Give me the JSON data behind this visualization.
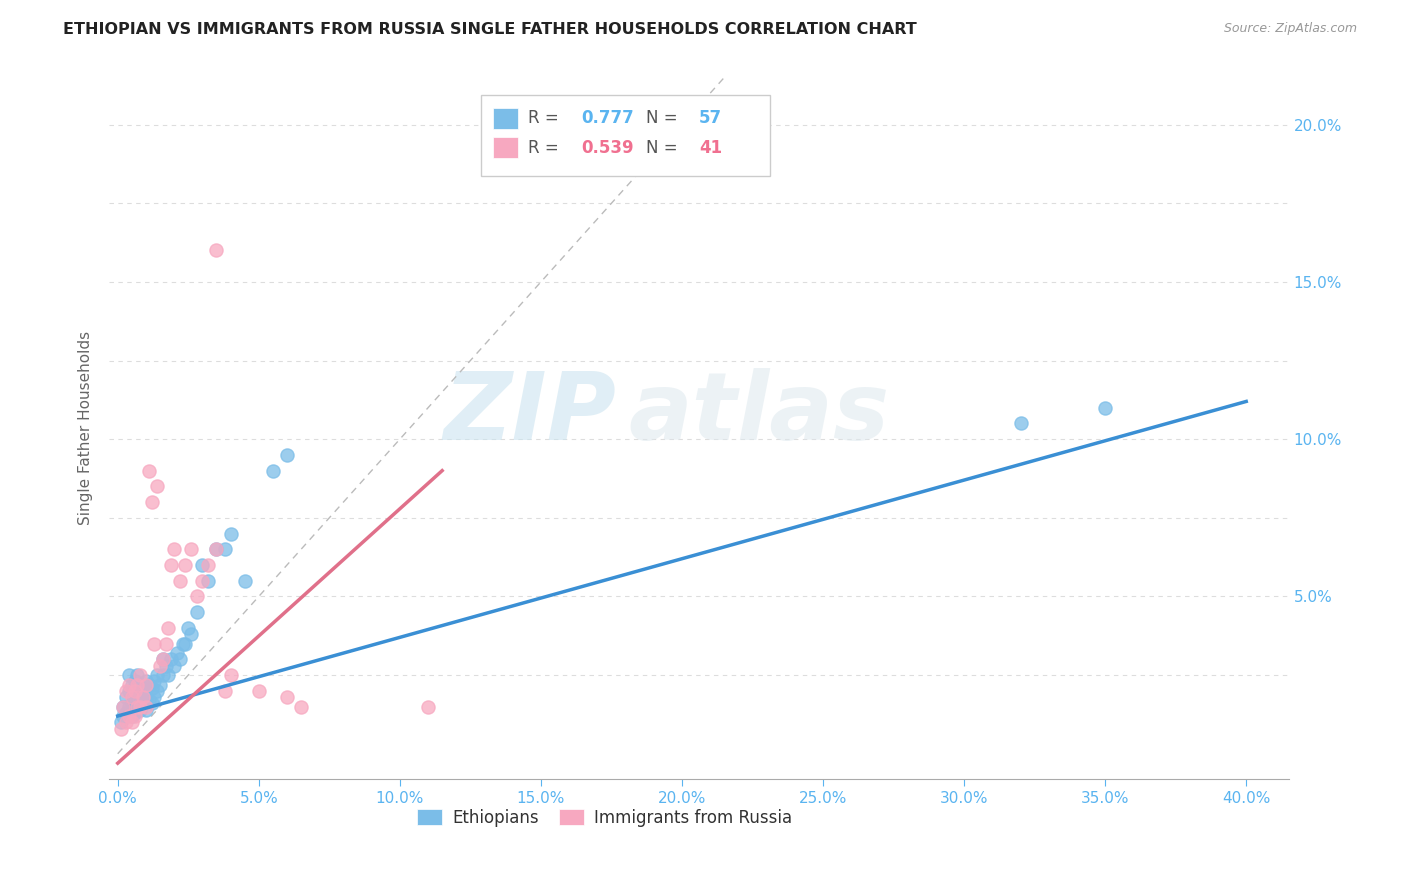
{
  "title": "ETHIOPIAN VS IMMIGRANTS FROM RUSSIA SINGLE FATHER HOUSEHOLDS CORRELATION CHART",
  "source": "Source: ZipAtlas.com",
  "xlabel_ticks": [
    0.0,
    0.05,
    0.1,
    0.15,
    0.2,
    0.25,
    0.3,
    0.35,
    0.4
  ],
  "ylabel_ticks": [
    0.0,
    0.025,
    0.05,
    0.075,
    0.1,
    0.125,
    0.15,
    0.175,
    0.2
  ],
  "xlim": [
    -0.003,
    0.415
  ],
  "ylim": [
    -0.008,
    0.215
  ],
  "ylabel": "Single Father Households",
  "blue_R": 0.777,
  "blue_N": 57,
  "pink_R": 0.539,
  "pink_N": 41,
  "blue_color": "#7bbde8",
  "pink_color": "#f7a8c0",
  "blue_label": "Ethiopians",
  "pink_label": "Immigrants from Russia",
  "tick_label_color": "#5ab4f0",
  "axis_color": "#aaaaaa",
  "grid_color": "#dddddd",
  "watermark_zip": "ZIP",
  "watermark_atlas": "atlas",
  "blue_scatter_x": [
    0.001,
    0.002,
    0.002,
    0.003,
    0.003,
    0.004,
    0.004,
    0.004,
    0.005,
    0.005,
    0.005,
    0.006,
    0.006,
    0.006,
    0.007,
    0.007,
    0.007,
    0.008,
    0.008,
    0.008,
    0.009,
    0.009,
    0.01,
    0.01,
    0.01,
    0.011,
    0.011,
    0.012,
    0.012,
    0.013,
    0.013,
    0.014,
    0.014,
    0.015,
    0.016,
    0.016,
    0.017,
    0.018,
    0.019,
    0.02,
    0.021,
    0.022,
    0.023,
    0.024,
    0.025,
    0.026,
    0.028,
    0.03,
    0.032,
    0.035,
    0.038,
    0.04,
    0.045,
    0.055,
    0.06,
    0.32,
    0.35
  ],
  "blue_scatter_y": [
    0.01,
    0.012,
    0.015,
    0.013,
    0.018,
    0.015,
    0.02,
    0.025,
    0.012,
    0.016,
    0.022,
    0.013,
    0.017,
    0.023,
    0.015,
    0.02,
    0.025,
    0.014,
    0.018,
    0.022,
    0.016,
    0.02,
    0.014,
    0.018,
    0.023,
    0.017,
    0.022,
    0.016,
    0.021,
    0.018,
    0.023,
    0.02,
    0.025,
    0.022,
    0.025,
    0.03,
    0.028,
    0.025,
    0.03,
    0.028,
    0.032,
    0.03,
    0.035,
    0.035,
    0.04,
    0.038,
    0.045,
    0.06,
    0.055,
    0.065,
    0.065,
    0.07,
    0.055,
    0.09,
    0.095,
    0.105,
    0.11
  ],
  "pink_scatter_x": [
    0.001,
    0.002,
    0.003,
    0.003,
    0.004,
    0.004,
    0.005,
    0.005,
    0.006,
    0.006,
    0.007,
    0.007,
    0.008,
    0.008,
    0.009,
    0.01,
    0.01,
    0.011,
    0.012,
    0.013,
    0.014,
    0.015,
    0.016,
    0.017,
    0.018,
    0.019,
    0.02,
    0.022,
    0.024,
    0.026,
    0.028,
    0.03,
    0.032,
    0.035,
    0.038,
    0.04,
    0.05,
    0.06,
    0.065,
    0.11,
    0.035
  ],
  "pink_scatter_y": [
    0.008,
    0.015,
    0.01,
    0.02,
    0.012,
    0.022,
    0.01,
    0.018,
    0.012,
    0.02,
    0.015,
    0.022,
    0.015,
    0.025,
    0.018,
    0.015,
    0.022,
    0.09,
    0.08,
    0.035,
    0.085,
    0.028,
    0.03,
    0.035,
    0.04,
    0.06,
    0.065,
    0.055,
    0.06,
    0.065,
    0.05,
    0.055,
    0.06,
    0.065,
    0.02,
    0.025,
    0.02,
    0.018,
    0.015,
    0.015,
    0.16
  ],
  "blue_trendline_x": [
    0.0,
    0.4
  ],
  "blue_trendline_y": [
    0.012,
    0.112
  ],
  "pink_trendline_x": [
    0.0,
    0.115
  ],
  "pink_trendline_y": [
    -0.003,
    0.09
  ],
  "diag_line_x": [
    0.0,
    0.215
  ],
  "diag_line_y": [
    0.0,
    0.215
  ]
}
